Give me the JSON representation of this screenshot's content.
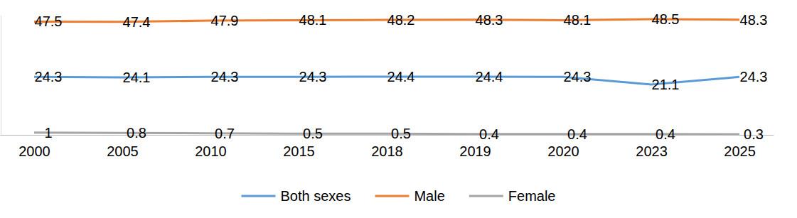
{
  "chart_data": {
    "type": "line",
    "categories": [
      "2000",
      "2005",
      "2010",
      "2015",
      "2018",
      "2019",
      "2020",
      "2023",
      "2025"
    ],
    "series": [
      {
        "name": "Both sexes",
        "color": "#5b9bd5",
        "values": [
          24.3,
          24.1,
          24.3,
          24.3,
          24.4,
          24.4,
          24.3,
          21.1,
          24.3
        ]
      },
      {
        "name": "Male",
        "color": "#ed7d31",
        "values": [
          47.5,
          47.4,
          47.9,
          48.1,
          48.2,
          48.3,
          48.1,
          48.5,
          48.3
        ]
      },
      {
        "name": "Female",
        "color": "#a5a5a5",
        "values": [
          1,
          0.8,
          0.7,
          0.5,
          0.5,
          0.4,
          0.4,
          0.4,
          0.3
        ]
      }
    ],
    "ylim": [
      0,
      50
    ],
    "tick_labels": "x",
    "data_labels": true,
    "legend": "bottom",
    "grid": false
  }
}
